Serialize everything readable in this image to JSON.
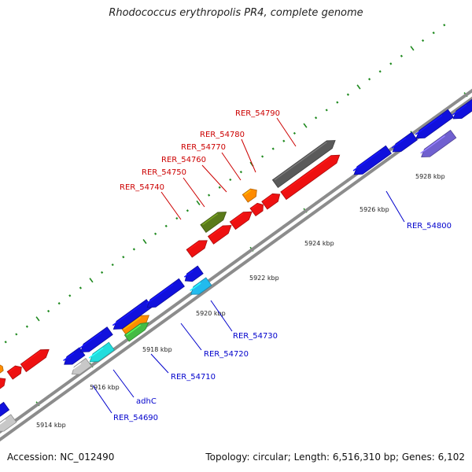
{
  "title": "Rhodococcus erythropolis PR4, complete genome",
  "footer": {
    "accession": "Accession: NC_012490",
    "summary": "Topology: circular; Length: 6,516,310 bp; Genes: 6,102"
  },
  "tick_labels": [
    "5914 kbp",
    "5916 kbp",
    "5918 kbp",
    "5920 kbp",
    "5922 kbp",
    "5924 kbp",
    "5926 kbp",
    "5928 kbp"
  ],
  "colors": {
    "backbone": "#8c8c8c",
    "tick": "#1f8a1f",
    "forward_gene": "#ee1111",
    "reverse_gene": "#1111dd",
    "label_forward": "#cc0000",
    "label_reverse": "#0000cc"
  },
  "labels_forward": [
    "RER_54740",
    "RER_54750",
    "RER_54760",
    "RER_54770",
    "RER_54780",
    "RER_54790"
  ],
  "labels_reverse": [
    "RER_54690",
    "adhC",
    "RER_54710",
    "RER_54720",
    "RER_54730",
    "RER_54800"
  ]
}
